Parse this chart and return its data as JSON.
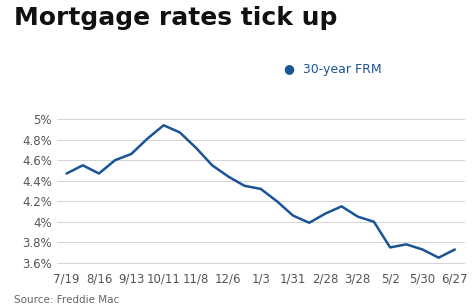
{
  "title": "Mortgage rates tick up",
  "source": "Source: Freddie Mac",
  "legend_label": "30-year FRM",
  "legend_color": "#1a5396",
  "line_color": "#1a5396",
  "background_color": "#ffffff",
  "x_labels": [
    "7/19",
    "8/16",
    "9/13",
    "10/11",
    "11/8",
    "12/6",
    "1/3",
    "1/31",
    "2/28",
    "3/28",
    "5/2",
    "5/30",
    "6/27"
  ],
  "y_values": [
    4.47,
    4.55,
    4.47,
    4.6,
    4.66,
    4.81,
    4.94,
    4.87,
    4.72,
    4.55,
    4.44,
    4.35,
    4.32,
    4.2,
    4.06,
    3.99,
    4.08,
    4.15,
    4.05,
    4.0,
    3.75,
    3.78,
    3.73,
    3.65,
    3.73
  ],
  "ylim": [
    3.55,
    5.05
  ],
  "yticks": [
    3.6,
    3.8,
    4.0,
    4.2,
    4.4,
    4.6,
    4.8,
    5.0
  ],
  "title_fontsize": 18,
  "axis_fontsize": 8.5,
  "source_fontsize": 7.5,
  "legend_fontsize": 9
}
